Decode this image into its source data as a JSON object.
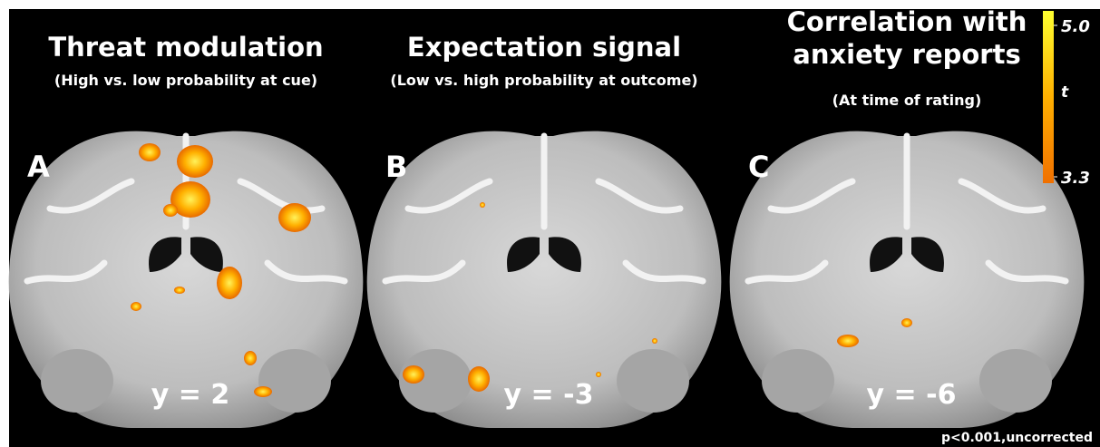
{
  "panels": [
    {
      "letter": "A",
      "title_lines": [
        "Threat modulation"
      ],
      "subtitle": "(High vs. low probability at cue)",
      "slice": "y = 2"
    },
    {
      "letter": "B",
      "title_lines": [
        "Expectation signal"
      ],
      "subtitle": "(Low vs. high probability at outcome)",
      "slice": "y = -3"
    },
    {
      "letter": "C",
      "title_lines": [
        "Correlation with",
        "anxiety reports"
      ],
      "subtitle": "(At time of rating)",
      "slice": "y = -6"
    }
  ],
  "colorbar": {
    "label": "t",
    "ticks": [
      {
        "value": 5,
        "label": "5.0"
      },
      3.3
    ]
  },
  "footnote": "p<0.001,uncorrected"
}
